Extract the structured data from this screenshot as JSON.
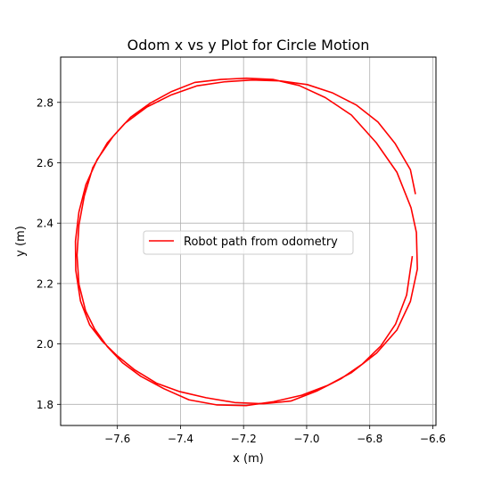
{
  "chart_data": {
    "type": "line",
    "title": "Odom x vs y Plot for Circle Motion",
    "xlabel": "x (m)",
    "ylabel": "y (m)",
    "xlim": [
      -7.78,
      -6.59
    ],
    "ylim": [
      1.73,
      2.95
    ],
    "xticks": [
      -7.6,
      -7.4,
      -7.2,
      -7.0,
      -6.8,
      -6.6
    ],
    "xtick_labels": [
      "−7.6",
      "−7.4",
      "−7.2",
      "−7.0",
      "−6.8",
      "−6.6"
    ],
    "yticks": [
      1.8,
      2.0,
      2.2,
      2.4,
      2.6,
      2.8
    ],
    "ytick_labels": [
      "1.8",
      "2.0",
      "2.2",
      "2.4",
      "2.6",
      "2.8"
    ],
    "grid": true,
    "legend": {
      "position": "center",
      "entries": [
        "Robot path from odometry"
      ]
    },
    "series": [
      {
        "name": "Robot path from odometry",
        "color": "#ff0000",
        "x": [
          -6.655,
          -6.671,
          -6.719,
          -6.774,
          -6.842,
          -6.919,
          -6.998,
          -7.082,
          -7.173,
          -7.261,
          -7.347,
          -7.429,
          -7.506,
          -7.577,
          -7.632,
          -7.678,
          -7.705,
          -7.722,
          -7.728,
          -7.722,
          -7.701,
          -7.672,
          -7.631,
          -7.584,
          -7.526,
          -7.453,
          -7.373,
          -7.284,
          -7.192,
          -7.104,
          -7.016,
          -6.935,
          -6.858,
          -6.778,
          -6.714,
          -6.671,
          -6.649,
          -6.652,
          -6.669,
          -6.714,
          -6.779,
          -6.858,
          -6.941,
          -7.024,
          -7.107,
          -7.191,
          -7.272,
          -7.355,
          -7.428,
          -7.495,
          -7.558,
          -7.614,
          -7.664,
          -7.7,
          -7.722,
          -7.733,
          -7.732,
          -7.717,
          -7.688,
          -7.648,
          -7.603,
          -7.545,
          -7.476,
          -7.402,
          -7.319,
          -7.228,
          -7.136,
          -7.05,
          -6.966,
          -6.891,
          -6.824,
          -6.765,
          -6.718,
          -6.683,
          -6.665
        ],
        "y": [
          2.496,
          2.577,
          2.663,
          2.735,
          2.791,
          2.832,
          2.859,
          2.871,
          2.874,
          2.868,
          2.855,
          2.825,
          2.785,
          2.73,
          2.666,
          2.584,
          2.49,
          2.394,
          2.294,
          2.198,
          2.11,
          2.049,
          1.99,
          1.938,
          1.893,
          1.852,
          1.815,
          1.798,
          1.796,
          1.809,
          1.83,
          1.862,
          1.905,
          1.97,
          2.046,
          2.141,
          2.248,
          2.369,
          2.451,
          2.569,
          2.666,
          2.758,
          2.816,
          2.856,
          2.876,
          2.88,
          2.876,
          2.866,
          2.836,
          2.798,
          2.751,
          2.687,
          2.611,
          2.527,
          2.437,
          2.34,
          2.244,
          2.142,
          2.063,
          2.009,
          1.963,
          1.914,
          1.87,
          1.842,
          1.822,
          1.806,
          1.802,
          1.811,
          1.845,
          1.885,
          1.933,
          1.993,
          2.066,
          2.162,
          2.291
        ]
      }
    ]
  }
}
